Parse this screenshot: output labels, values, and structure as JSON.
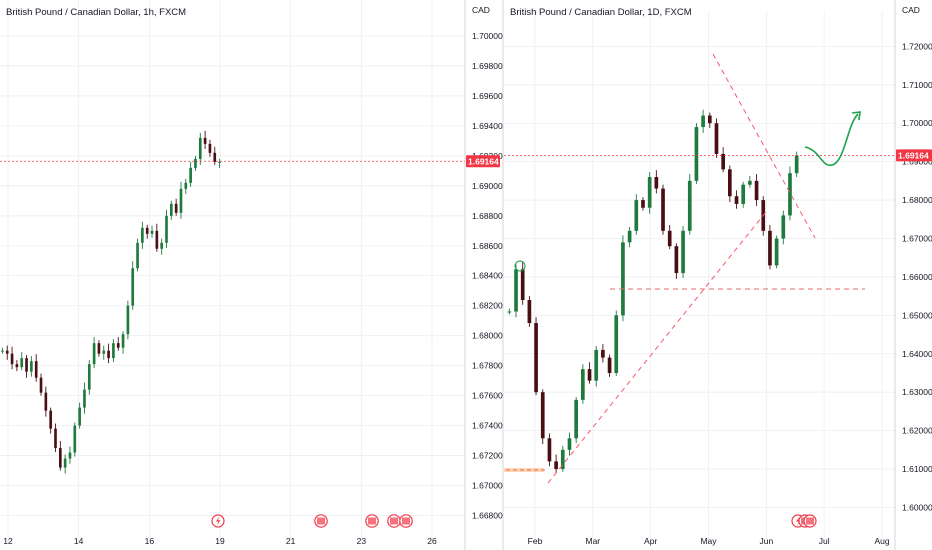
{
  "colors": {
    "up": "#1f7a3d",
    "down": "#4a0f14",
    "price_line": "#f23645",
    "badge_bg": "#f23645",
    "dashed": "#f45b69",
    "arrow": "#1aa34a",
    "highlight": "#ffcc99",
    "grid": "#eceef2",
    "event_icon": "#f23645"
  },
  "chart_data": [
    {
      "type": "line",
      "title": "British Pound / Canadian Dollar, 1h, FXCM",
      "x_tick_labels": [
        "12",
        "14",
        "16",
        "19",
        "21",
        "23",
        "26"
      ],
      "y_tick_labels": [
        "1.70000",
        "1.69800",
        "1.69600",
        "1.69400",
        "1.69200",
        "1.69000",
        "1.68800",
        "1.68600",
        "1.68400",
        "1.68200",
        "1.68000",
        "1.67800",
        "1.67600",
        "1.67400",
        "1.67200",
        "1.67000",
        "1.66800"
      ],
      "ylim": [
        1.6675,
        1.7012
      ],
      "current_price": 1.69164,
      "current_price_label": "1.69164",
      "series": [
        {
          "values": [
            1.679,
            1.6788,
            1.6781,
            1.6779,
            1.6785,
            1.6776,
            1.6783,
            1.6772,
            1.6762,
            1.675,
            1.6738,
            1.6725,
            1.6712,
            1.6718,
            1.6722,
            1.674,
            1.6752,
            1.6764,
            1.6781,
            1.6795,
            1.6788,
            1.679,
            1.6785,
            1.6795,
            1.6792,
            1.6801,
            1.682,
            1.6845,
            1.6862,
            1.6872,
            1.6868,
            1.687,
            1.6858,
            1.6862,
            1.688,
            1.6888,
            1.6882,
            1.6898,
            1.6902,
            1.6912,
            1.6918,
            1.6932,
            1.6928,
            1.6922,
            1.6916,
            1.6916
          ]
        }
      ],
      "xlim": [
        0,
        52
      ]
    },
    {
      "type": "line",
      "title": "British Pound / Canadian Dollar, 1D, FXCM",
      "x_tick_labels": [
        "Feb",
        "Mar",
        "Apr",
        "May",
        "Jun",
        "Jul",
        "Aug"
      ],
      "y_tick_labels": [
        "1.72000",
        "1.71000",
        "1.70000",
        "1.69000",
        "1.68000",
        "1.67000",
        "1.66000",
        "1.65000",
        "1.64000",
        "1.63000",
        "1.62000",
        "1.61000",
        "1.60000"
      ],
      "ylim": [
        1.597,
        1.724
      ],
      "current_price": 1.69164,
      "current_price_label": "1.69164",
      "series": [
        {
          "values": [
            1.651,
            1.662,
            1.654,
            1.648,
            1.63,
            1.618,
            1.612,
            1.61,
            1.615,
            1.618,
            1.628,
            1.636,
            1.633,
            1.641,
            1.639,
            1.635,
            1.65,
            1.669,
            1.672,
            1.68,
            1.678,
            1.686,
            1.683,
            1.672,
            1.668,
            1.661,
            1.672,
            1.685,
            1.699,
            1.702,
            1.7,
            1.692,
            1.688,
            1.681,
            1.679,
            1.684,
            1.685,
            1.68,
            1.672,
            1.663,
            1.67,
            1.676,
            1.687,
            1.6916
          ]
        }
      ],
      "xlim": [
        0,
        72
      ]
    }
  ],
  "currency": "CAD"
}
